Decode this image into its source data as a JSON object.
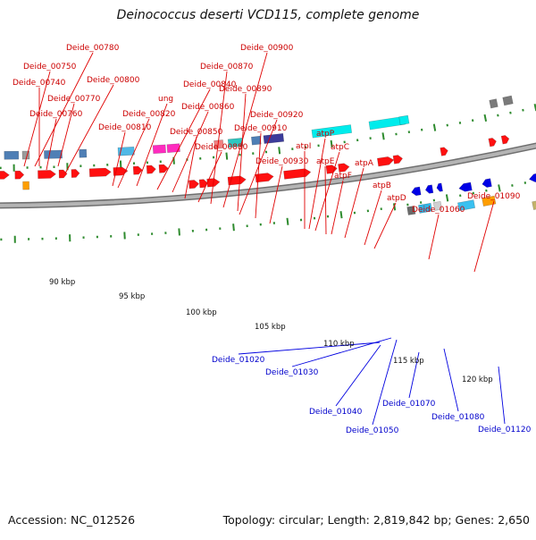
{
  "title": "Deinococcus deserti VCD115, complete genome",
  "footer": {
    "accession": "Accession: NC_012526",
    "summary": "Topology: circular; Length: 2,819,842 bp; Genes: 2,650"
  },
  "colors": {
    "forward_gene": "#ff0000",
    "reverse_gene": "#0000e0",
    "forward_label": "#cc0000",
    "reverse_label": "#0000cc",
    "backbone": "#909090",
    "ticks": "#2e8b2e"
  },
  "scale_labels": [
    "90 kbp",
    "95 kbp",
    "100 kbp",
    "105 kbp",
    "110 kbp",
    "115 kbp",
    "120 kbp"
  ],
  "forward_labels": [
    "Deide_00780",
    "Deide_00750",
    "Deide_00740",
    "Deide_00770",
    "Deide_00760",
    "Deide_00800",
    "ung",
    "Deide_00840",
    "Deide_00820",
    "Deide_00810",
    "Deide_00860",
    "Deide_00850",
    "Deide_00880",
    "Deide_00870",
    "Deide_00900",
    "Deide_00890",
    "Deide_00920",
    "Deide_00910",
    "Deide_00930",
    "atpI",
    "atpP",
    "atpC",
    "atpE",
    "atpF",
    "atpA",
    "atpB",
    "atpD",
    "Deide_01060",
    "Deide_01090"
  ],
  "reverse_labels": [
    "Deide_01020",
    "Deide_01030",
    "Deide_01040",
    "Deide_01050",
    "Deide_01070",
    "Deide_01080",
    "Deide_01120"
  ]
}
